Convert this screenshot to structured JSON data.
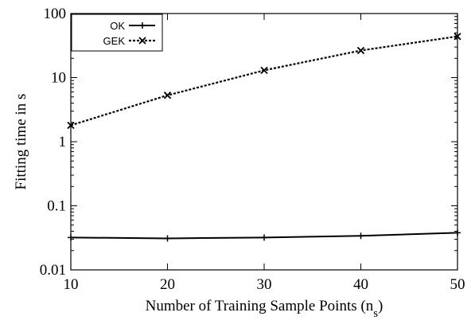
{
  "chart_data": {
    "type": "line",
    "xlabel": "Number of Training Sample Points (n",
    "xlabel_sub": "s",
    "xlabel_close": ")",
    "ylabel": "Fitting time in s",
    "x": [
      10,
      20,
      30,
      40,
      50
    ],
    "xlim": [
      10,
      50
    ],
    "ylim": [
      0.01,
      100
    ],
    "yscale": "log",
    "grid": false,
    "legend_position": "top-left",
    "x_ticks": [
      10,
      20,
      30,
      40,
      50
    ],
    "x_tick_labels": [
      "10",
      "20",
      "30",
      "40",
      "50"
    ],
    "y_ticks": [
      0.01,
      0.1,
      1,
      10,
      100
    ],
    "y_tick_labels": [
      "0.01",
      "0.1",
      "1",
      "10",
      "100"
    ],
    "series": [
      {
        "name": "OK",
        "values": [
          0.032,
          0.031,
          0.032,
          0.034,
          0.038
        ],
        "line_style": "solid",
        "marker": "plus",
        "color": "#000000"
      },
      {
        "name": "GEK",
        "values": [
          1.8,
          5.3,
          13.0,
          26.5,
          44.0
        ],
        "line_style": "dotted",
        "marker": "cross",
        "color": "#000000"
      }
    ]
  }
}
